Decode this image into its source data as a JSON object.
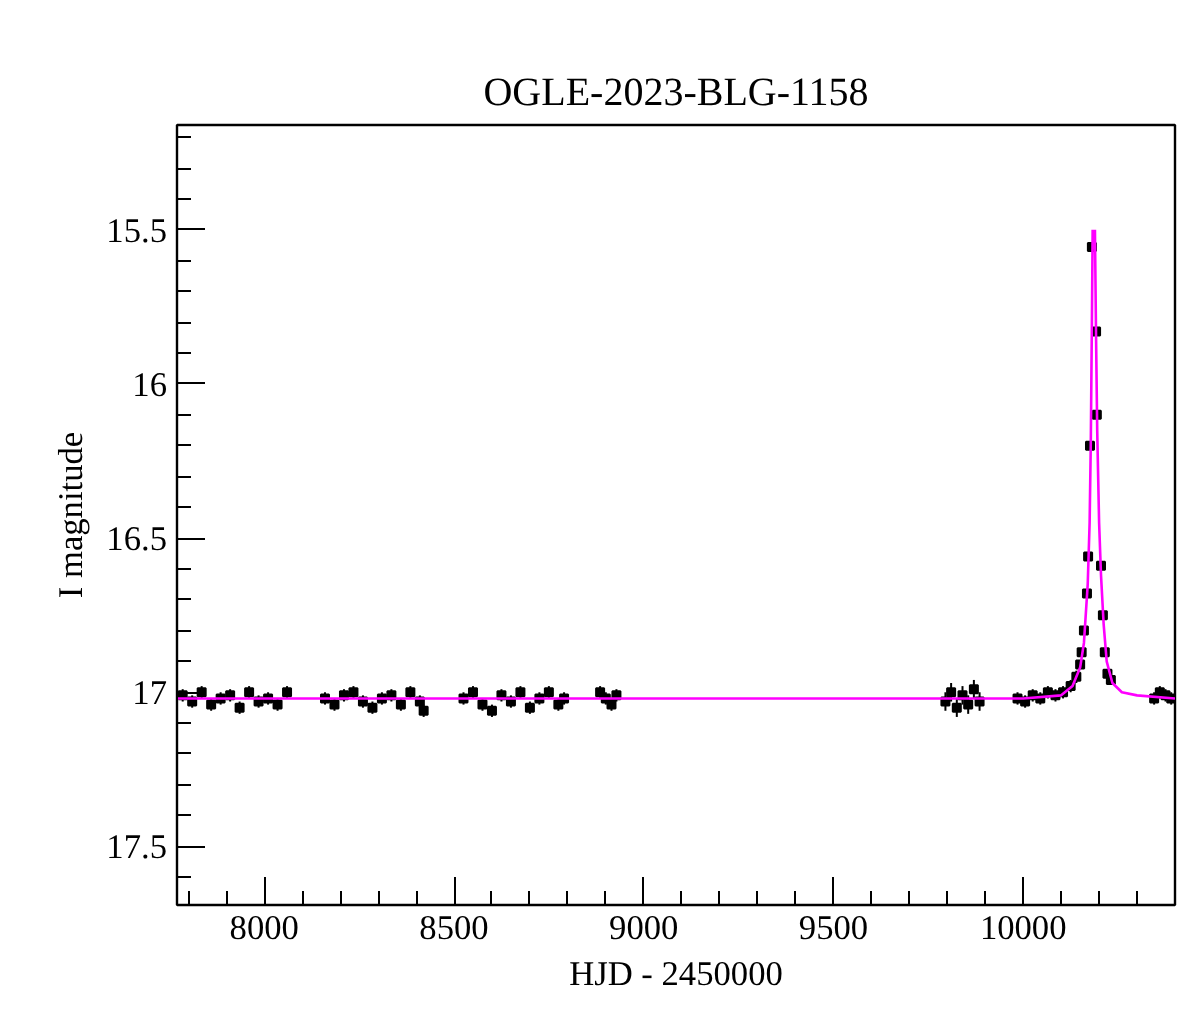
{
  "chart_data": {
    "type": "scatter",
    "title": "OGLE-2023-BLG-1158",
    "xlabel": "HJD - 2450000",
    "ylabel": "I magnitude",
    "xlim": [
      7770,
      10400
    ],
    "ylim": [
      17.69,
      15.16
    ],
    "xticks": [
      8000,
      8500,
      9000,
      9500,
      10000
    ],
    "yticks": [
      15.5,
      16,
      16.5,
      17,
      17.5
    ],
    "grid": false,
    "series": [
      {
        "color": "#000000",
        "marker": "square",
        "x": [
          7785,
          7810,
          7835,
          7860,
          7885,
          7910,
          7935,
          7960,
          7985,
          8010,
          8035,
          8060,
          8160,
          8185,
          8210,
          8235,
          8260,
          8285,
          8310,
          8335,
          8360,
          8385,
          8410,
          8420,
          8525,
          8550,
          8575,
          8600,
          8625,
          8650,
          8675,
          8700,
          8725,
          8750,
          8775,
          8790,
          8885,
          8900,
          8915,
          8928,
          9795,
          9810,
          9825,
          9840,
          9855,
          9870,
          9885,
          9985,
          10005,
          10025,
          10045,
          10065,
          10085,
          10105,
          10125,
          10140,
          10150,
          10154,
          10160,
          10168,
          10171,
          10176,
          10181,
          10192,
          10194,
          10205,
          10210,
          10215,
          10222,
          10231,
          10345,
          10360,
          10375,
          10390
        ],
        "values": [
          17.01,
          17.03,
          17.0,
          17.04,
          17.02,
          17.01,
          17.05,
          17.0,
          17.03,
          17.02,
          17.04,
          17.0,
          17.02,
          17.04,
          17.01,
          17.0,
          17.03,
          17.05,
          17.02,
          17.01,
          17.04,
          17.0,
          17.03,
          17.06,
          17.02,
          17.0,
          17.04,
          17.06,
          17.01,
          17.03,
          17.0,
          17.05,
          17.02,
          17.0,
          17.04,
          17.02,
          17.0,
          17.02,
          17.04,
          17.01,
          17.03,
          17.0,
          17.05,
          17.01,
          17.04,
          16.99,
          17.03,
          17.02,
          17.03,
          17.01,
          17.02,
          17.0,
          17.01,
          17.0,
          16.98,
          16.95,
          16.91,
          16.87,
          16.8,
          16.68,
          16.56,
          16.2,
          15.556,
          15.83,
          16.1,
          16.59,
          16.75,
          16.87,
          16.94,
          16.96,
          17.02,
          17.0,
          17.01,
          17.02
        ],
        "errors": [
          0.02,
          0.02,
          0.02,
          0.02,
          0.02,
          0.02,
          0.02,
          0.02,
          0.02,
          0.02,
          0.02,
          0.02,
          0.02,
          0.02,
          0.02,
          0.02,
          0.02,
          0.02,
          0.02,
          0.02,
          0.02,
          0.02,
          0.02,
          0.02,
          0.02,
          0.02,
          0.02,
          0.02,
          0.02,
          0.02,
          0.02,
          0.02,
          0.02,
          0.02,
          0.02,
          0.02,
          0.02,
          0.02,
          0.02,
          0.02,
          0.03,
          0.03,
          0.03,
          0.03,
          0.03,
          0.03,
          0.03,
          0.02,
          0.02,
          0.02,
          0.02,
          0.02,
          0.02,
          0.02,
          0.02,
          0.02,
          0.01,
          0.01,
          0.01,
          0.01,
          0.01,
          0.01,
          0.01,
          0.01,
          0.01,
          0.01,
          0.01,
          0.01,
          0.01,
          0.01,
          0.02,
          0.02,
          0.02,
          0.02
        ]
      },
      {
        "type": "line",
        "color": "#ff00ff",
        "line_style": "solid",
        "x": [
          7770,
          10000,
          10100,
          10130,
          10150,
          10160,
          10170,
          10175,
          10178,
          10181,
          10183,
          10185,
          10187,
          10189,
          10192,
          10195,
          10200,
          10205,
          10212,
          10220,
          10235,
          10260,
          10300,
          10400
        ],
        "values": [
          17.02,
          17.02,
          17.01,
          16.98,
          16.92,
          16.84,
          16.65,
          16.45,
          16.2,
          15.8,
          15.5,
          null,
          null,
          15.5,
          15.85,
          16.15,
          16.45,
          16.62,
          16.78,
          16.9,
          16.97,
          17.0,
          17.01,
          17.02
        ]
      }
    ]
  }
}
